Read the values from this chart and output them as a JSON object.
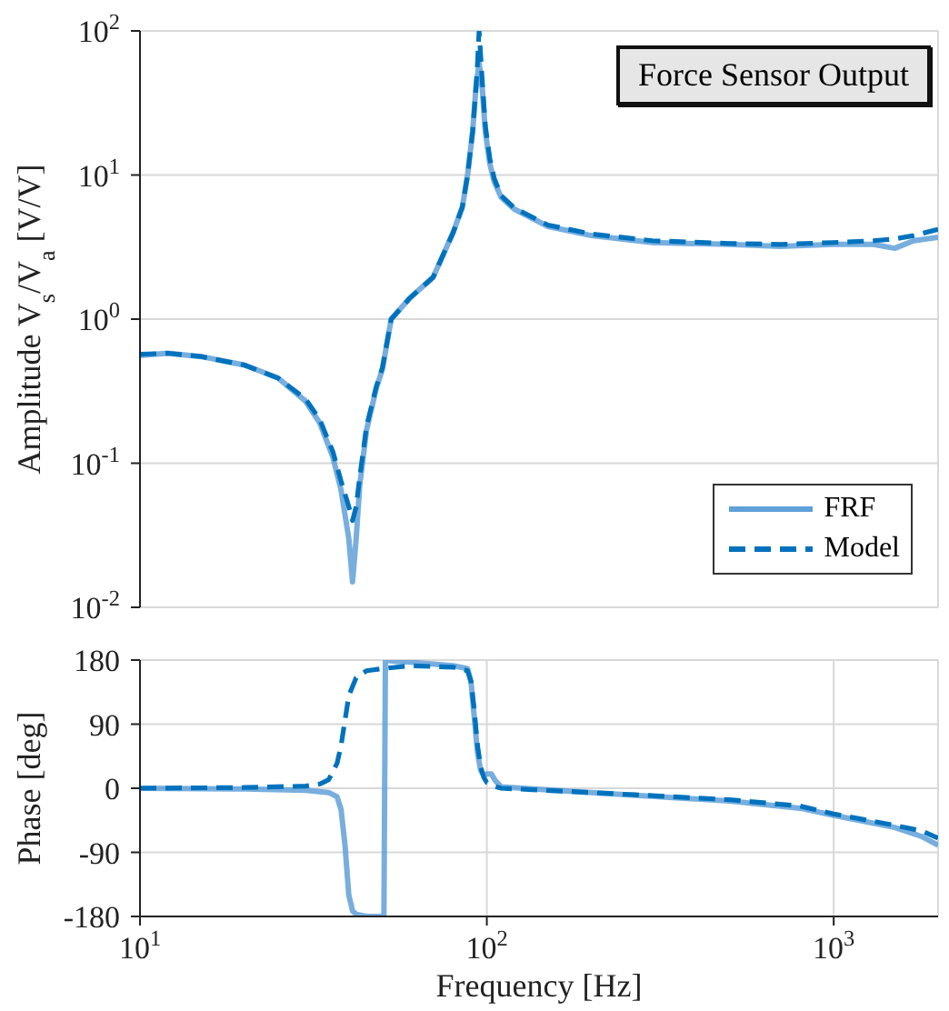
{
  "chart_data": [
    {
      "type": "line",
      "title": "Force Sensor Output",
      "ylabel": "Amplitude V$_{s}$/V$_{a}$ [V/V]",
      "log": "xy",
      "xlim": [
        10,
        2000
      ],
      "ylim": [
        0.01,
        100
      ],
      "yticks": [
        {
          "value": 0.01,
          "label": "10$^{-2}$"
        },
        {
          "value": 0.1,
          "label": "10$^{-1}$"
        },
        {
          "value": 1,
          "label": "10$^{0}$"
        },
        {
          "value": 10,
          "label": "10$^{1}$"
        },
        {
          "value": 100,
          "label": "10$^{2}$"
        }
      ],
      "tick_labels": "y",
      "grid": true,
      "legend": "bottom right",
      "marker": "none",
      "series": [
        {
          "name": "FRF",
          "color": "#5fa0d8",
          "line_style": "solid",
          "x": [
            10,
            12,
            15,
            20,
            25,
            30,
            33,
            36,
            38,
            40,
            41,
            42,
            43,
            45,
            48,
            50,
            53,
            60,
            70,
            80,
            85,
            88,
            91,
            93,
            95,
            97,
            99,
            102,
            105,
            110,
            120,
            150,
            200,
            300,
            500,
            700,
            1000,
            1300,
            1500,
            1700,
            2000
          ],
          "values": [
            0.56,
            0.58,
            0.55,
            0.48,
            0.39,
            0.27,
            0.19,
            0.11,
            0.065,
            0.03,
            0.015,
            0.03,
            0.07,
            0.17,
            0.33,
            0.45,
            1.0,
            1.4,
            1.95,
            4.0,
            6,
            10,
            20,
            40,
            60,
            40,
            20,
            12,
            9,
            7,
            5.8,
            4.4,
            3.8,
            3.4,
            3.3,
            3.2,
            3.3,
            3.3,
            3.1,
            3.5,
            3.7
          ]
        },
        {
          "name": "Model",
          "color": "#0072bd",
          "line_style": "dashed",
          "x": [
            10,
            12,
            15,
            20,
            25,
            30,
            33,
            36,
            38,
            40,
            41,
            42,
            43,
            45,
            48,
            50,
            53,
            60,
            70,
            80,
            85,
            88,
            91,
            93,
            94,
            95,
            97,
            99,
            102,
            105,
            110,
            120,
            150,
            200,
            300,
            500,
            700,
            1000,
            1300,
            1500,
            1700,
            2000
          ],
          "values": [
            0.57,
            0.58,
            0.55,
            0.48,
            0.39,
            0.28,
            0.2,
            0.12,
            0.075,
            0.05,
            0.04,
            0.05,
            0.08,
            0.18,
            0.34,
            0.46,
            1.0,
            1.4,
            1.95,
            4.0,
            6,
            10,
            20,
            40,
            60,
            100,
            45,
            22,
            13,
            9.5,
            7.2,
            5.9,
            4.5,
            3.9,
            3.5,
            3.35,
            3.3,
            3.4,
            3.5,
            3.6,
            3.8,
            4.2
          ]
        }
      ]
    },
    {
      "type": "line",
      "xlabel": "Frequency [Hz]",
      "ylabel": "Phase [deg]",
      "log": "x",
      "xlim": [
        10,
        2000
      ],
      "ylim": [
        -180,
        180
      ],
      "xticks": [
        {
          "value": 10,
          "label": "10$^{1}$"
        },
        {
          "value": 100,
          "label": "10$^{2}$"
        },
        {
          "value": 1000,
          "label": "10$^{3}$"
        }
      ],
      "yticks": [
        -180,
        -90,
        0,
        90,
        180
      ],
      "grid": true,
      "marker": "none",
      "series": [
        {
          "color": "#5fa0d8",
          "line_style": "solid",
          "x": [
            10,
            20,
            30,
            35,
            37,
            38,
            39,
            40,
            41,
            42,
            45,
            50,
            50.5,
            51,
            55,
            60,
            80,
            88,
            90,
            92,
            94,
            96,
            98,
            100,
            103,
            106,
            110,
            200,
            500,
            800,
            1000,
            1500,
            1800,
            2000
          ],
          "values": [
            0,
            -1,
            -3,
            -6,
            -12,
            -30,
            -80,
            -150,
            -172,
            -177,
            -180,
            -180,
            -180,
            180,
            178,
            177,
            172,
            168,
            150,
            100,
            50,
            25,
            18,
            20,
            20,
            10,
            2,
            -6,
            -18,
            -28,
            -38,
            -55,
            -68,
            -80
          ]
        },
        {
          "color": "#0072bd",
          "line_style": "dashed",
          "x": [
            10,
            20,
            30,
            33,
            35,
            37,
            38,
            40,
            42,
            45,
            50,
            60,
            80,
            88,
            90,
            92,
            94,
            96,
            98,
            100,
            105,
            110,
            200,
            500,
            800,
            1000,
            1500,
            1800,
            2000
          ],
          "values": [
            0,
            1,
            3,
            6,
            12,
            35,
            60,
            130,
            155,
            165,
            168,
            172,
            170,
            165,
            150,
            110,
            60,
            30,
            15,
            8,
            3,
            0,
            -6,
            -16,
            -25,
            -36,
            -52,
            -60,
            -70
          ]
        }
      ]
    }
  ]
}
